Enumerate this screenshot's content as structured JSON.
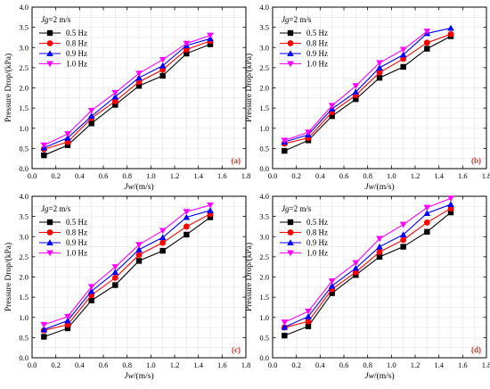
{
  "chart_data": [
    {
      "type": "line",
      "panel_label": "(a)",
      "legend_title": "Jg=2 m/s",
      "xlabel": "Jw/(m/s)",
      "ylabel": "Pressure Drop/(kPa)",
      "xlim": [
        0,
        1.8
      ],
      "ylim": [
        0,
        4.0
      ],
      "xticks": [
        0.0,
        0.2,
        0.4,
        0.6,
        0.8,
        1.0,
        1.2,
        1.4,
        1.6,
        1.8
      ],
      "yticks": [
        0.0,
        0.5,
        1.0,
        1.5,
        2.0,
        2.5,
        3.0,
        3.5,
        4.0
      ],
      "x": [
        0.1,
        0.3,
        0.5,
        0.7,
        0.9,
        1.1,
        1.3,
        1.5
      ],
      "grid": true,
      "legend_position": "top-left",
      "series": [
        {
          "name": "0.5 Hz",
          "color": "#000000",
          "marker": "square",
          "values": [
            0.33,
            0.58,
            1.12,
            1.58,
            2.05,
            2.3,
            2.85,
            3.08
          ]
        },
        {
          "name": "0.8 Hz",
          "color": "#ff0000",
          "marker": "circle",
          "values": [
            0.48,
            0.66,
            1.25,
            1.67,
            2.15,
            2.45,
            2.95,
            3.16
          ]
        },
        {
          "name": "0.9 Hz",
          "color": "#0000ff",
          "marker": "triangle-up",
          "values": [
            0.52,
            0.76,
            1.3,
            1.78,
            2.25,
            2.55,
            3.05,
            3.22
          ]
        },
        {
          "name": "1.0 Hz",
          "color": "#ff00ff",
          "marker": "triangle-down",
          "values": [
            0.58,
            0.86,
            1.44,
            1.88,
            2.36,
            2.7,
            3.1,
            3.3
          ]
        }
      ]
    },
    {
      "type": "line",
      "panel_label": "(b)",
      "legend_title": "Jg=2 m/s",
      "xlabel": "Jw/(m/s)",
      "ylabel": "Pressure Drop/(kPa)",
      "xlim": [
        0,
        1.8
      ],
      "ylim": [
        0,
        4.0
      ],
      "xticks": [
        0.0,
        0.2,
        0.4,
        0.6,
        0.8,
        1.0,
        1.2,
        1.4,
        1.6,
        1.8
      ],
      "yticks": [
        0.0,
        0.5,
        1.0,
        1.5,
        2.0,
        2.5,
        3.0,
        3.5,
        4.0
      ],
      "x": [
        0.1,
        0.3,
        0.5,
        0.7,
        0.9,
        1.1,
        1.3,
        1.5
      ],
      "grid": true,
      "legend_position": "top-left",
      "series": [
        {
          "name": "0.5 Hz",
          "color": "#000000",
          "marker": "square",
          "values": [
            0.44,
            0.7,
            1.3,
            1.72,
            2.25,
            2.52,
            2.97,
            3.28
          ]
        },
        {
          "name": "0.8 Hz",
          "color": "#ff0000",
          "marker": "circle",
          "values": [
            0.62,
            0.76,
            1.4,
            1.82,
            2.38,
            2.72,
            3.12,
            3.33
          ]
        },
        {
          "name": "0.9 Hz",
          "color": "#0000ff",
          "marker": "triangle-up",
          "values": [
            0.66,
            0.84,
            1.48,
            1.9,
            2.5,
            2.82,
            3.35,
            3.48
          ]
        },
        {
          "name": "1.0 Hz",
          "color": "#ff00ff",
          "marker": "triangle-down",
          "values": [
            0.7,
            0.9,
            1.56,
            2.05,
            2.62,
            2.95,
            3.4,
            null
          ]
        }
      ]
    },
    {
      "type": "line",
      "panel_label": "(c)",
      "legend_title": "Jg=2 m/s",
      "xlabel": "Jw/(m/s)",
      "ylabel": "Pressure Drop/(kPa)",
      "xlim": [
        0,
        1.8
      ],
      "ylim": [
        0,
        4.0
      ],
      "xticks": [
        0.0,
        0.2,
        0.4,
        0.6,
        0.8,
        1.0,
        1.2,
        1.4,
        1.6,
        1.8
      ],
      "yticks": [
        0.0,
        0.5,
        1.0,
        1.5,
        2.0,
        2.5,
        3.0,
        3.5,
        4.0
      ],
      "x": [
        0.1,
        0.3,
        0.5,
        0.7,
        0.9,
        1.1,
        1.3,
        1.5
      ],
      "grid": true,
      "legend_position": "top-left",
      "series": [
        {
          "name": "0.5 Hz",
          "color": "#000000",
          "marker": "square",
          "values": [
            0.52,
            0.73,
            1.42,
            1.8,
            2.4,
            2.65,
            3.05,
            3.48
          ]
        },
        {
          "name": "0.8 Hz",
          "color": "#ff0000",
          "marker": "circle",
          "values": [
            0.68,
            0.82,
            1.55,
            1.98,
            2.55,
            2.85,
            3.25,
            3.56
          ]
        },
        {
          "name": "0.9 Hz",
          "color": "#0000ff",
          "marker": "triangle-up",
          "values": [
            0.7,
            0.92,
            1.65,
            2.12,
            2.68,
            2.98,
            3.48,
            3.65
          ]
        },
        {
          "name": "1.0 Hz",
          "color": "#ff00ff",
          "marker": "triangle-down",
          "values": [
            0.82,
            1.02,
            1.76,
            2.25,
            2.8,
            3.15,
            3.62,
            3.78
          ]
        }
      ]
    },
    {
      "type": "line",
      "panel_label": "(d)",
      "legend_title": "Jg=2 m/s",
      "xlabel": "Jw/(m/s)",
      "ylabel": "Pressure Drop/(kPa)",
      "xlim": [
        0,
        1.8
      ],
      "ylim": [
        0,
        4.0
      ],
      "xticks": [
        0.0,
        0.2,
        0.4,
        0.6,
        0.8,
        1.0,
        1.2,
        1.4,
        1.6,
        1.8
      ],
      "yticks": [
        0.0,
        0.5,
        1.0,
        1.5,
        2.0,
        2.5,
        3.0,
        3.5,
        4.0
      ],
      "x": [
        0.1,
        0.3,
        0.5,
        0.7,
        0.9,
        1.1,
        1.3,
        1.5
      ],
      "grid": true,
      "legend_position": "top-left",
      "series": [
        {
          "name": "0.5 Hz",
          "color": "#000000",
          "marker": "square",
          "values": [
            0.55,
            0.78,
            1.6,
            2.05,
            2.5,
            2.75,
            3.12,
            3.6
          ]
        },
        {
          "name": "0.8 Hz",
          "color": "#ff0000",
          "marker": "circle",
          "values": [
            0.75,
            0.9,
            1.7,
            2.12,
            2.62,
            2.92,
            3.35,
            3.7
          ]
        },
        {
          "name": "0.9 Hz",
          "color": "#0000ff",
          "marker": "triangle-up",
          "values": [
            0.76,
            1.02,
            1.78,
            2.22,
            2.75,
            3.05,
            3.58,
            3.8
          ]
        },
        {
          "name": "1.0 Hz",
          "color": "#ff00ff",
          "marker": "triangle-down",
          "values": [
            0.88,
            1.15,
            1.9,
            2.35,
            2.95,
            3.3,
            3.72,
            3.95
          ]
        }
      ]
    }
  ]
}
